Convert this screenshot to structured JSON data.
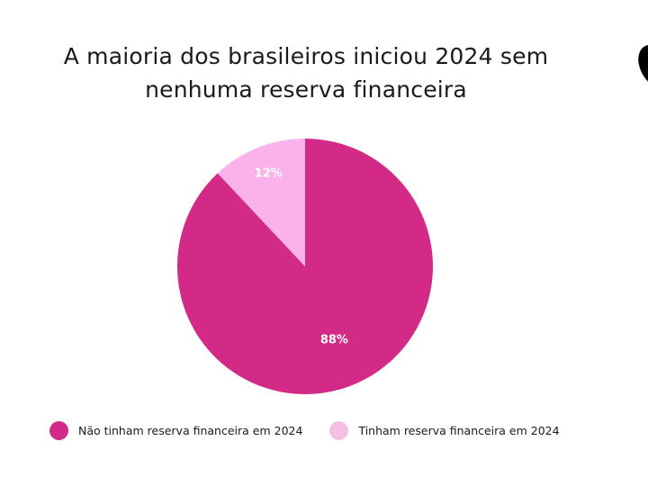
{
  "title": {
    "line1": "A maioria dos brasileiros iniciou 2024 sem",
    "line2": "nenhuma reserva financeira"
  },
  "chart_data": {
    "type": "pie",
    "title": "A maioria dos brasileiros iniciou 2024 sem nenhuma reserva financeira",
    "slices": [
      {
        "label": "Não tinham reserva financeira em 2024",
        "value": 88,
        "value_label": "88%",
        "color": "#d42a87"
      },
      {
        "label": "Tinham reserva financeira em 2024",
        "value": 12,
        "value_label": "12%",
        "color": "#fbb2eb"
      }
    ],
    "legend_placement": "bottom"
  },
  "legend": {
    "items": [
      {
        "label": "Não tinham reserva financeira em 2024",
        "color": "#d42a87"
      },
      {
        "label": "Tinham reserva financeira em 2024",
        "color": "#f5bfe4"
      }
    ]
  }
}
